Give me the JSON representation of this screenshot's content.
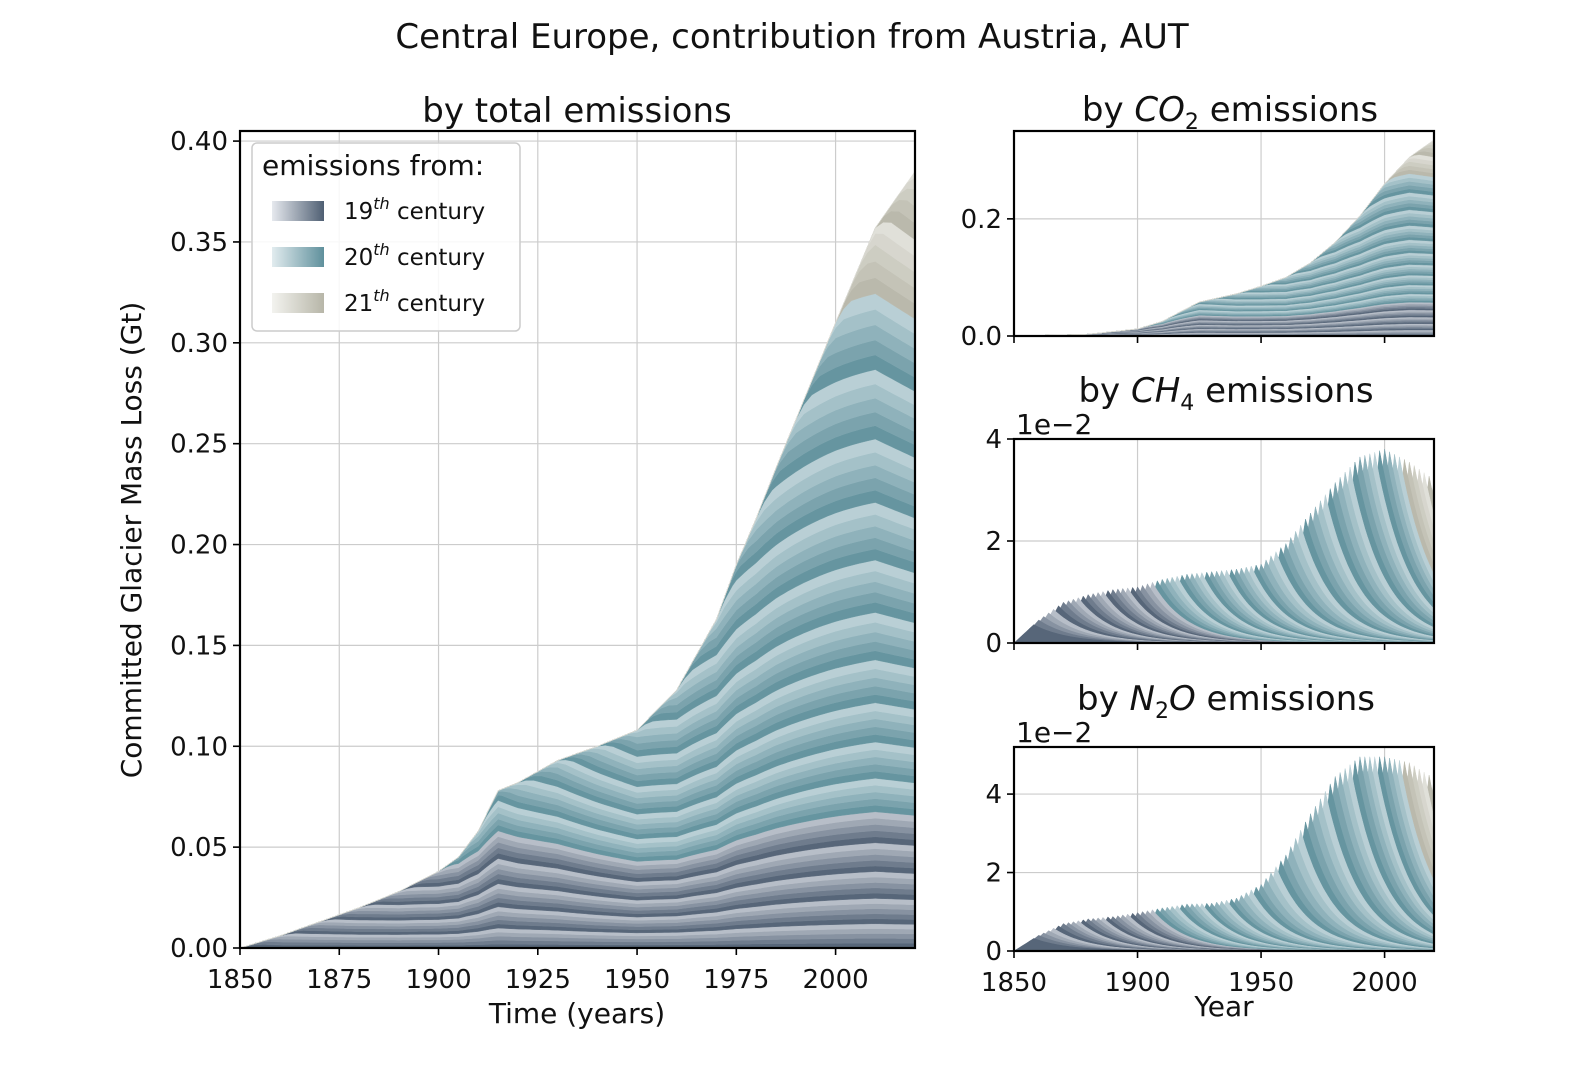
{
  "figure": {
    "suptitle": "Central Europe, contribution from Austria, AUT"
  },
  "colors": {
    "c19": [
      "#e6e9ee",
      "#4f5f73"
    ],
    "c20": [
      "#e2ecef",
      "#5f909c"
    ],
    "c21": [
      "#f3f3ef",
      "#b7b6a8"
    ],
    "grid": "#cccccc"
  },
  "legend": {
    "title": "emissions from:",
    "entries": [
      {
        "prefix": "19",
        "sup": "th",
        "suffix": " century",
        "color_key": "c19"
      },
      {
        "prefix": "20",
        "sup": "th",
        "suffix": " century",
        "color_key": "c20"
      },
      {
        "prefix": "21",
        "sup": "th",
        "suffix": " century",
        "color_key": "c21"
      }
    ]
  },
  "chart_data": [
    {
      "id": "main",
      "type": "area",
      "stacked": true,
      "title": "by total emissions",
      "xlabel": "Time (years)",
      "ylabel": "Committed Glacier Mass Loss (Gt)",
      "xlim": [
        1850,
        2020
      ],
      "ylim": [
        0,
        0.405
      ],
      "xticks": [
        1850,
        1875,
        1900,
        1925,
        1950,
        1975,
        2000
      ],
      "yticks": [
        0.0,
        0.05,
        0.1,
        0.15,
        0.2,
        0.25,
        0.3,
        0.35,
        0.4
      ],
      "ytick_labels": [
        "0.00",
        "0.05",
        "0.10",
        "0.15",
        "0.20",
        "0.25",
        "0.30",
        "0.35",
        "0.40"
      ],
      "grid": true,
      "legend_position": "upper-left",
      "x": [
        1850,
        1860,
        1870,
        1880,
        1890,
        1900,
        1905,
        1910,
        1915,
        1920,
        1930,
        1940,
        1950,
        1960,
        1970,
        1975,
        1980,
        1985,
        1990,
        2000,
        2010,
        2020
      ],
      "total": [
        0,
        0.006,
        0.013,
        0.02,
        0.028,
        0.038,
        0.045,
        0.058,
        0.078,
        0.082,
        0.093,
        0.1,
        0.108,
        0.128,
        0.163,
        0.19,
        0.213,
        0.238,
        0.262,
        0.31,
        0.357,
        0.385
      ],
      "tranche_years": 10,
      "note_values": "cumulative committed glacier mass loss; each emission year contributes a band that grows then slowly decays"
    },
    {
      "id": "co2",
      "type": "area",
      "stacked": true,
      "title_prefix": "by ",
      "title_species": "CO",
      "title_sub": "2",
      "title_suffix": " emissions",
      "xlim": [
        1850,
        2020
      ],
      "ylim": [
        0,
        0.35
      ],
      "xticks": [
        1850,
        1900,
        1950,
        2000
      ],
      "yticks": [
        0.0,
        0.2
      ],
      "ytick_labels": [
        "0.0",
        "0.2"
      ],
      "grid": true,
      "x": [
        1850,
        1880,
        1900,
        1910,
        1925,
        1940,
        1950,
        1960,
        1970,
        1980,
        1990,
        2000,
        2010,
        2020
      ],
      "total": [
        0,
        0.003,
        0.012,
        0.025,
        0.058,
        0.072,
        0.085,
        0.1,
        0.125,
        0.16,
        0.205,
        0.26,
        0.305,
        0.335
      ]
    },
    {
      "id": "ch4",
      "type": "area",
      "stacked": false,
      "title_prefix": "by ",
      "title_species": "CH",
      "title_sub": "4",
      "title_suffix": " emissions",
      "offset_text": "1e−2",
      "xlim": [
        1850,
        2020
      ],
      "ylim": [
        0,
        4
      ],
      "xticks": [
        1850,
        1900,
        1950,
        2000
      ],
      "yticks": [
        0,
        2,
        4
      ],
      "ytick_labels": [
        "0",
        "2",
        "4"
      ],
      "grid": true,
      "x": [
        1850,
        1860,
        1870,
        1880,
        1890,
        1900,
        1910,
        1920,
        1930,
        1940,
        1950,
        1960,
        1970,
        1980,
        1990,
        2000,
        2010,
        2020
      ],
      "envelope": [
        0,
        0.45,
        0.8,
        0.95,
        1.05,
        1.1,
        1.25,
        1.35,
        1.4,
        1.45,
        1.55,
        1.95,
        2.55,
        3.15,
        3.65,
        3.8,
        3.55,
        3.2
      ]
    },
    {
      "id": "n2o",
      "type": "area",
      "stacked": false,
      "title_prefix": "by ",
      "title_species": "N",
      "title_sub": "2",
      "title_species2": "O",
      "title_suffix": " emissions",
      "offset_text": "1e−2",
      "xlabel": "Year",
      "xlim": [
        1850,
        2020
      ],
      "ylim": [
        0,
        5.2
      ],
      "xticks": [
        1850,
        1900,
        1950,
        2000
      ],
      "yticks": [
        0,
        2,
        4
      ],
      "ytick_labels": [
        "0",
        "2",
        "4"
      ],
      "grid": true,
      "x": [
        1850,
        1860,
        1870,
        1880,
        1890,
        1900,
        1910,
        1920,
        1930,
        1940,
        1950,
        1960,
        1970,
        1980,
        1990,
        2000,
        2010,
        2020
      ],
      "envelope": [
        0,
        0.4,
        0.7,
        0.82,
        0.88,
        0.98,
        1.1,
        1.2,
        1.22,
        1.35,
        1.7,
        2.45,
        3.5,
        4.45,
        4.95,
        4.95,
        4.8,
        4.4
      ]
    }
  ]
}
